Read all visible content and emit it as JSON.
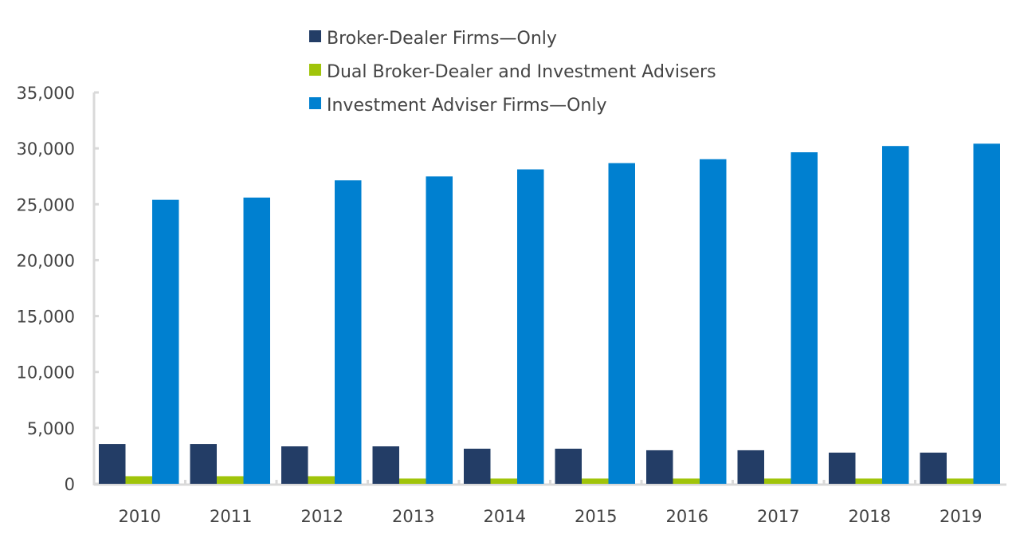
{
  "chart_data": {
    "type": "bar",
    "title": "",
    "xlabel": "",
    "ylabel": "",
    "categories": [
      "2010",
      "2011",
      "2012",
      "2013",
      "2014",
      "2015",
      "2016",
      "2017",
      "2018",
      "2019"
    ],
    "ylim": [
      0,
      35000
    ],
    "yticks": [
      0,
      5000,
      10000,
      15000,
      20000,
      25000,
      30000,
      35000
    ],
    "ytick_labels": [
      "0",
      "5,000",
      "10,000",
      "15,000",
      "20,000",
      "25,000",
      "30,000",
      "35,000"
    ],
    "grid": false,
    "legend_placement": "top-center",
    "series": [
      {
        "name": "Broker-Dealer Firms—Only",
        "color": "#233D66",
        "values": [
          3560,
          3560,
          3350,
          3350,
          3140,
          3140,
          3000,
          3000,
          2790,
          2790
        ]
      },
      {
        "name": "Dual Broker-Dealer and Investment Advisers",
        "color": "#A0C40A",
        "values": [
          680,
          680,
          680,
          470,
          470,
          470,
          470,
          470,
          470,
          470
        ]
      },
      {
        "name": "Investment Adviser Firms—Only",
        "color": "#0080D0",
        "values": [
          25400,
          25600,
          27140,
          27490,
          28120,
          28680,
          29030,
          29650,
          30210,
          30420
        ]
      }
    ],
    "axis_color": "#D9D9D9"
  }
}
